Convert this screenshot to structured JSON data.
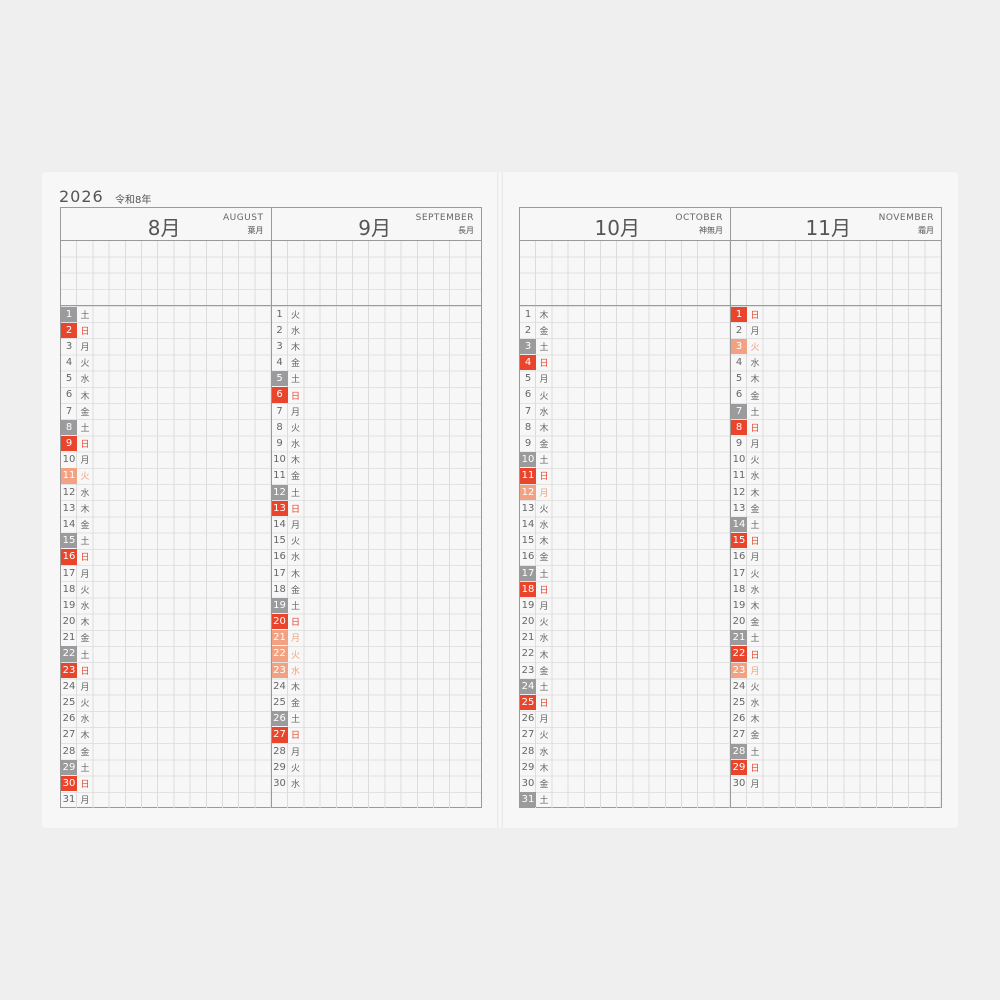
{
  "year": "2026",
  "era": "令和8年",
  "colors": {
    "saturday": "#9b9b9d",
    "sunday": "#e8452c",
    "holiday": "#f2a283"
  },
  "months": [
    {
      "name": "8月",
      "english": "AUGUST",
      "wafu": "葉月",
      "days": [
        [
          "1",
          "土",
          "sat"
        ],
        [
          "2",
          "日",
          "sun"
        ],
        [
          "3",
          "月",
          ""
        ],
        [
          "4",
          "火",
          ""
        ],
        [
          "5",
          "水",
          ""
        ],
        [
          "6",
          "木",
          ""
        ],
        [
          "7",
          "金",
          ""
        ],
        [
          "8",
          "土",
          "sat"
        ],
        [
          "9",
          "日",
          "sun"
        ],
        [
          "10",
          "月",
          ""
        ],
        [
          "11",
          "火",
          "hol"
        ],
        [
          "12",
          "水",
          ""
        ],
        [
          "13",
          "木",
          ""
        ],
        [
          "14",
          "金",
          ""
        ],
        [
          "15",
          "土",
          "sat"
        ],
        [
          "16",
          "日",
          "sun"
        ],
        [
          "17",
          "月",
          ""
        ],
        [
          "18",
          "火",
          ""
        ],
        [
          "19",
          "水",
          ""
        ],
        [
          "20",
          "木",
          ""
        ],
        [
          "21",
          "金",
          ""
        ],
        [
          "22",
          "土",
          "sat"
        ],
        [
          "23",
          "日",
          "sun"
        ],
        [
          "24",
          "月",
          ""
        ],
        [
          "25",
          "火",
          ""
        ],
        [
          "26",
          "水",
          ""
        ],
        [
          "27",
          "木",
          ""
        ],
        [
          "28",
          "金",
          ""
        ],
        [
          "29",
          "土",
          "sat"
        ],
        [
          "30",
          "日",
          "sun"
        ],
        [
          "31",
          "月",
          ""
        ]
      ]
    },
    {
      "name": "9月",
      "english": "SEPTEMBER",
      "wafu": "長月",
      "days": [
        [
          "1",
          "火",
          ""
        ],
        [
          "2",
          "水",
          ""
        ],
        [
          "3",
          "木",
          ""
        ],
        [
          "4",
          "金",
          ""
        ],
        [
          "5",
          "土",
          "sat"
        ],
        [
          "6",
          "日",
          "sun"
        ],
        [
          "7",
          "月",
          ""
        ],
        [
          "8",
          "火",
          ""
        ],
        [
          "9",
          "水",
          ""
        ],
        [
          "10",
          "木",
          ""
        ],
        [
          "11",
          "金",
          ""
        ],
        [
          "12",
          "土",
          "sat"
        ],
        [
          "13",
          "日",
          "sun"
        ],
        [
          "14",
          "月",
          ""
        ],
        [
          "15",
          "火",
          ""
        ],
        [
          "16",
          "水",
          ""
        ],
        [
          "17",
          "木",
          ""
        ],
        [
          "18",
          "金",
          ""
        ],
        [
          "19",
          "土",
          "sat"
        ],
        [
          "20",
          "日",
          "sun"
        ],
        [
          "21",
          "月",
          "hol"
        ],
        [
          "22",
          "火",
          "hol"
        ],
        [
          "23",
          "水",
          "hol"
        ],
        [
          "24",
          "木",
          ""
        ],
        [
          "25",
          "金",
          ""
        ],
        [
          "26",
          "土",
          "sat"
        ],
        [
          "27",
          "日",
          "sun"
        ],
        [
          "28",
          "月",
          ""
        ],
        [
          "29",
          "火",
          ""
        ],
        [
          "30",
          "水",
          ""
        ]
      ]
    },
    {
      "name": "10月",
      "english": "OCTOBER",
      "wafu": "神無月",
      "days": [
        [
          "1",
          "木",
          ""
        ],
        [
          "2",
          "金",
          ""
        ],
        [
          "3",
          "土",
          "sat"
        ],
        [
          "4",
          "日",
          "sun"
        ],
        [
          "5",
          "月",
          ""
        ],
        [
          "6",
          "火",
          ""
        ],
        [
          "7",
          "水",
          ""
        ],
        [
          "8",
          "木",
          ""
        ],
        [
          "9",
          "金",
          ""
        ],
        [
          "10",
          "土",
          "sat"
        ],
        [
          "11",
          "日",
          "sun"
        ],
        [
          "12",
          "月",
          "hol"
        ],
        [
          "13",
          "火",
          ""
        ],
        [
          "14",
          "水",
          ""
        ],
        [
          "15",
          "木",
          ""
        ],
        [
          "16",
          "金",
          ""
        ],
        [
          "17",
          "土",
          "sat"
        ],
        [
          "18",
          "日",
          "sun"
        ],
        [
          "19",
          "月",
          ""
        ],
        [
          "20",
          "火",
          ""
        ],
        [
          "21",
          "水",
          ""
        ],
        [
          "22",
          "木",
          ""
        ],
        [
          "23",
          "金",
          ""
        ],
        [
          "24",
          "土",
          "sat"
        ],
        [
          "25",
          "日",
          "sun"
        ],
        [
          "26",
          "月",
          ""
        ],
        [
          "27",
          "火",
          ""
        ],
        [
          "28",
          "水",
          ""
        ],
        [
          "29",
          "木",
          ""
        ],
        [
          "30",
          "金",
          ""
        ],
        [
          "31",
          "土",
          "sat"
        ]
      ]
    },
    {
      "name": "11月",
      "english": "NOVEMBER",
      "wafu": "霜月",
      "days": [
        [
          "1",
          "日",
          "sun"
        ],
        [
          "2",
          "月",
          ""
        ],
        [
          "3",
          "火",
          "hol"
        ],
        [
          "4",
          "水",
          ""
        ],
        [
          "5",
          "木",
          ""
        ],
        [
          "6",
          "金",
          ""
        ],
        [
          "7",
          "土",
          "sat"
        ],
        [
          "8",
          "日",
          "sun"
        ],
        [
          "9",
          "月",
          ""
        ],
        [
          "10",
          "火",
          ""
        ],
        [
          "11",
          "水",
          ""
        ],
        [
          "12",
          "木",
          ""
        ],
        [
          "13",
          "金",
          ""
        ],
        [
          "14",
          "土",
          "sat"
        ],
        [
          "15",
          "日",
          "sun"
        ],
        [
          "16",
          "月",
          ""
        ],
        [
          "17",
          "火",
          ""
        ],
        [
          "18",
          "水",
          ""
        ],
        [
          "19",
          "木",
          ""
        ],
        [
          "20",
          "金",
          ""
        ],
        [
          "21",
          "土",
          "sat"
        ],
        [
          "22",
          "日",
          "sun"
        ],
        [
          "23",
          "月",
          "hol"
        ],
        [
          "24",
          "火",
          ""
        ],
        [
          "25",
          "水",
          ""
        ],
        [
          "26",
          "木",
          ""
        ],
        [
          "27",
          "金",
          ""
        ],
        [
          "28",
          "土",
          "sat"
        ],
        [
          "29",
          "日",
          "sun"
        ],
        [
          "30",
          "月",
          ""
        ]
      ]
    }
  ]
}
